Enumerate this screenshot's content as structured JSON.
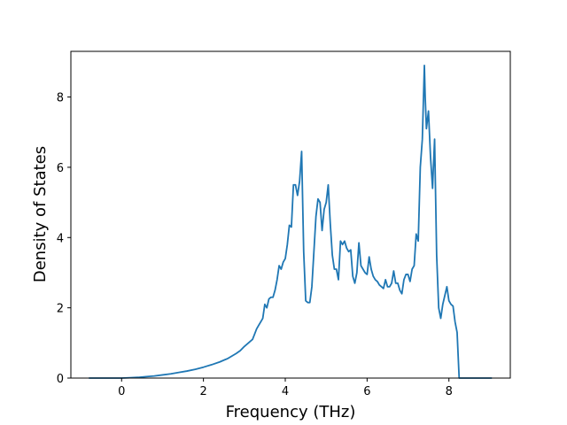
{
  "chart_data": {
    "type": "line",
    "title": "",
    "xlabel": "Frequency (THz)",
    "ylabel": "Density of States",
    "xlim": [
      -1.24,
      9.5
    ],
    "ylim": [
      0,
      9.3
    ],
    "xticks": [
      0,
      2,
      4,
      6,
      8
    ],
    "yticks": [
      0,
      2,
      4,
      6,
      8
    ],
    "grid": false,
    "legend": "none",
    "series": [
      {
        "color": "#1f77b4",
        "x": [
          -0.8,
          -0.4,
          0,
          0.2,
          0.4,
          0.6,
          0.8,
          1.0,
          1.2,
          1.4,
          1.6,
          1.8,
          2.0,
          2.2,
          2.4,
          2.6,
          2.8,
          2.9,
          3.0,
          3.1,
          3.2,
          3.25,
          3.3,
          3.35,
          3.4,
          3.45,
          3.5,
          3.55,
          3.6,
          3.65,
          3.7,
          3.75,
          3.8,
          3.85,
          3.9,
          3.95,
          4.0,
          4.05,
          4.1,
          4.15,
          4.2,
          4.25,
          4.3,
          4.35,
          4.4,
          4.45,
          4.5,
          4.55,
          4.6,
          4.65,
          4.7,
          4.75,
          4.8,
          4.85,
          4.9,
          4.95,
          5.0,
          5.05,
          5.1,
          5.15,
          5.2,
          5.25,
          5.3,
          5.35,
          5.4,
          5.45,
          5.5,
          5.55,
          5.6,
          5.65,
          5.7,
          5.75,
          5.8,
          5.85,
          5.9,
          5.95,
          6.0,
          6.05,
          6.1,
          6.15,
          6.2,
          6.25,
          6.3,
          6.35,
          6.4,
          6.45,
          6.5,
          6.55,
          6.6,
          6.65,
          6.7,
          6.75,
          6.8,
          6.85,
          6.9,
          6.95,
          7.0,
          7.05,
          7.1,
          7.15,
          7.2,
          7.25,
          7.3,
          7.35,
          7.4,
          7.42,
          7.45,
          7.5,
          7.55,
          7.6,
          7.62,
          7.65,
          7.7,
          7.75,
          7.8,
          7.85,
          7.9,
          7.95,
          8.0,
          8.05,
          8.1,
          8.15,
          8.2,
          8.25,
          8.3,
          8.5,
          8.8,
          9.05
        ],
        "y": [
          0,
          0,
          0,
          0.01,
          0.02,
          0.04,
          0.06,
          0.09,
          0.12,
          0.16,
          0.2,
          0.25,
          0.31,
          0.38,
          0.46,
          0.56,
          0.7,
          0.78,
          0.9,
          1.0,
          1.1,
          1.25,
          1.4,
          1.5,
          1.6,
          1.7,
          2.1,
          2.0,
          2.25,
          2.3,
          2.3,
          2.5,
          2.8,
          3.2,
          3.1,
          3.3,
          3.4,
          3.8,
          4.35,
          4.3,
          5.5,
          5.5,
          5.2,
          5.6,
          6.45,
          3.6,
          2.2,
          2.15,
          2.15,
          2.6,
          3.6,
          4.6,
          5.1,
          5.0,
          4.2,
          4.8,
          5.0,
          5.5,
          4.4,
          3.5,
          3.1,
          3.1,
          2.8,
          3.9,
          3.8,
          3.9,
          3.7,
          3.6,
          3.65,
          2.9,
          2.7,
          3.0,
          3.85,
          3.2,
          3.1,
          3.0,
          2.95,
          3.45,
          3.1,
          2.9,
          2.8,
          2.75,
          2.65,
          2.6,
          2.55,
          2.8,
          2.6,
          2.6,
          2.7,
          3.05,
          2.7,
          2.7,
          2.5,
          2.4,
          2.8,
          2.95,
          2.95,
          2.75,
          3.1,
          3.2,
          4.1,
          3.9,
          6.0,
          6.8,
          8.9,
          8.0,
          7.1,
          7.6,
          6.3,
          5.4,
          6.0,
          6.8,
          3.5,
          2.0,
          1.7,
          2.1,
          2.35,
          2.6,
          2.2,
          2.1,
          2.05,
          1.6,
          1.3,
          0,
          0,
          0,
          0,
          0
        ]
      }
    ]
  }
}
